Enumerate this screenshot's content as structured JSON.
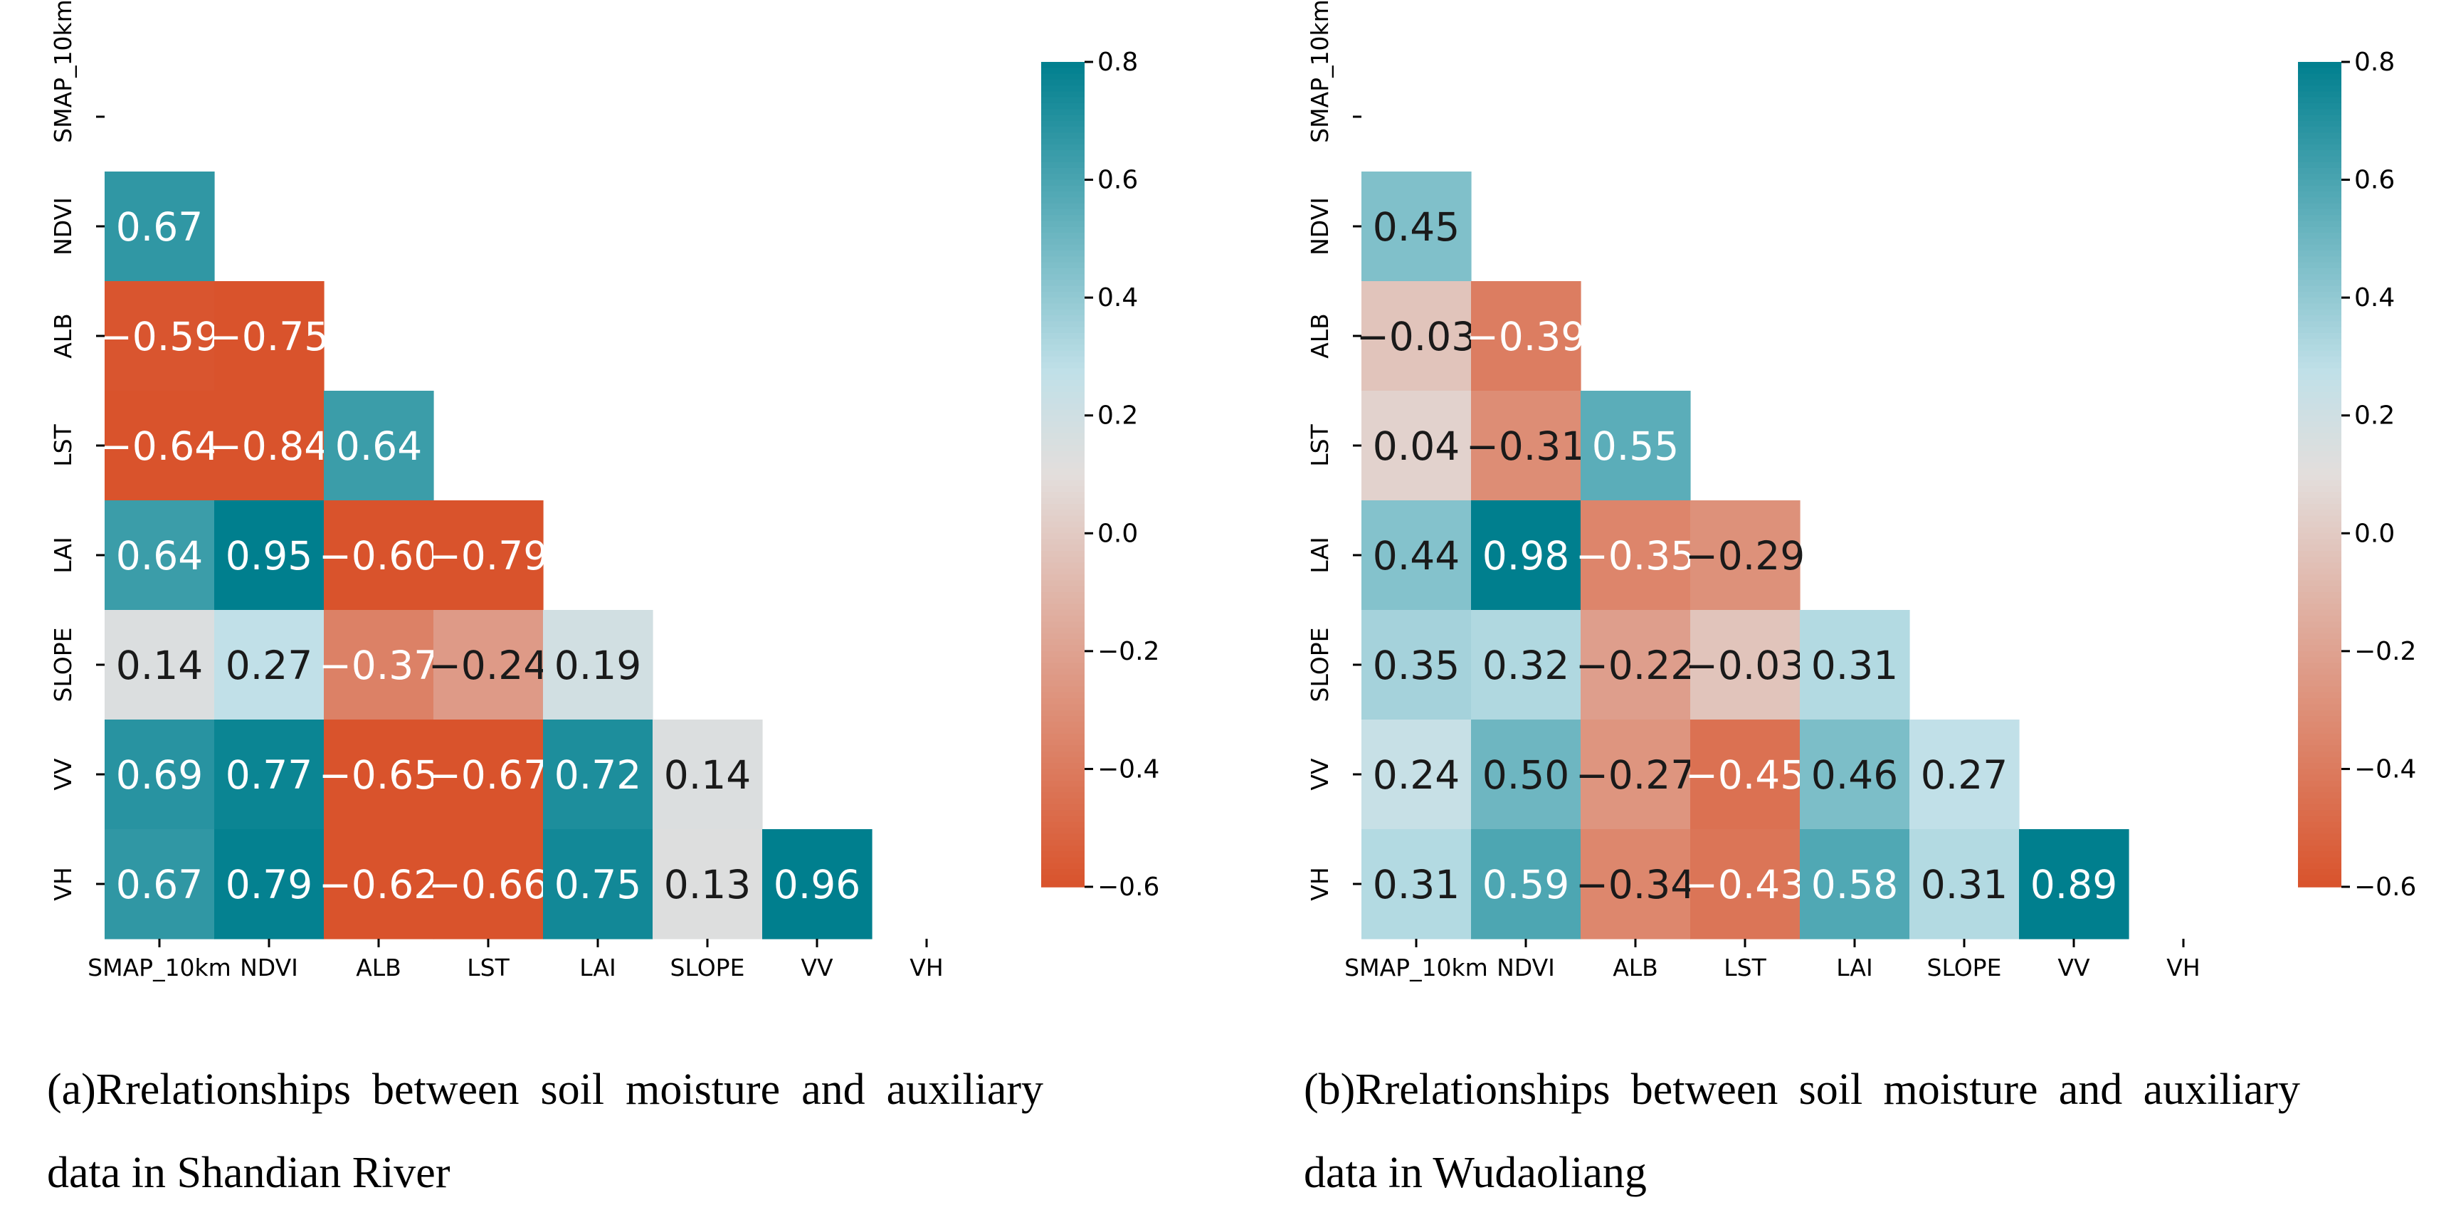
{
  "colors": {
    "neg": "#D9532C",
    "mid": "#E3DEDC",
    "light_blue": "#C0E0E8",
    "pos": "#007F8E"
  },
  "chart_data": [
    {
      "type": "heatmap",
      "variables": [
        "SMAP_10km",
        "NDVI",
        "ALB",
        "LST",
        "LAI",
        "SLOPE",
        "VV",
        "VH"
      ],
      "matrix_lower": [
        [],
        [
          0.67
        ],
        [
          -0.59,
          -0.75
        ],
        [
          -0.64,
          -0.84,
          0.64
        ],
        [
          0.64,
          0.95,
          -0.6,
          -0.79
        ],
        [
          0.14,
          0.27,
          -0.37,
          -0.24,
          0.19
        ],
        [
          0.69,
          0.77,
          -0.65,
          -0.67,
          0.72,
          0.14
        ],
        [
          0.67,
          0.79,
          -0.62,
          -0.66,
          0.75,
          0.13,
          0.96
        ]
      ],
      "colorbar": {
        "range": [
          -0.6,
          0.8
        ],
        "ticks": [
          "0.8",
          "0.6",
          "0.4",
          "0.2",
          "0.0",
          "−0.2",
          "−0.4",
          "−0.6"
        ]
      },
      "caption_line1": "(a)Rrelationships between soil moisture and",
      "caption_line2": "auxiliary data in Shandian River"
    },
    {
      "type": "heatmap",
      "variables": [
        "SMAP_10km",
        "NDVI",
        "ALB",
        "LST",
        "LAI",
        "SLOPE",
        "VV",
        "VH"
      ],
      "matrix_lower": [
        [],
        [
          0.45
        ],
        [
          -0.03,
          -0.39
        ],
        [
          0.04,
          -0.31,
          0.55
        ],
        [
          0.44,
          0.98,
          -0.35,
          -0.29
        ],
        [
          0.35,
          0.32,
          -0.22,
          -0.03,
          0.31
        ],
        [
          0.24,
          0.5,
          -0.27,
          -0.45,
          0.46,
          0.27
        ],
        [
          0.31,
          0.59,
          -0.34,
          -0.43,
          0.58,
          0.31,
          0.89
        ]
      ],
      "colorbar": {
        "range": [
          -0.6,
          0.8
        ],
        "ticks": [
          "0.8",
          "0.6",
          "0.4",
          "0.2",
          "0.0",
          "−0.2",
          "−0.4",
          "−0.6"
        ]
      },
      "caption_line1": "(b)Rrelationships between soil moisture and",
      "caption_line2": "auxiliary data in Wudaoliang"
    }
  ]
}
